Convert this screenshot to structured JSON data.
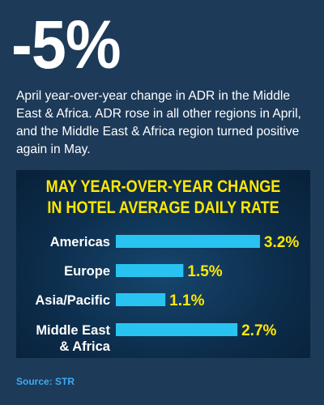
{
  "headline": {
    "figure": "-5%",
    "description": "April year-over-year change in ADR in the Middle East & Africa. ADR rose in all other regions in April, and the Middle East & Africa region turned positive again in May."
  },
  "colors": {
    "background": "#1d3a58",
    "bar": "#29c3f2",
    "value_label": "#ffe800",
    "title": "#ffe800",
    "category_label": "#ffffff",
    "source": "#3fa9f5"
  },
  "chart_data": {
    "type": "bar",
    "orientation": "horizontal",
    "title_lines": [
      "MAY YEAR-OVER-YEAR CHANGE",
      "IN HOTEL AVERAGE DAILY RATE"
    ],
    "categories": [
      [
        "Americas"
      ],
      [
        "Europe"
      ],
      [
        "Asia/Pacific"
      ],
      [
        "Middle East",
        "& Africa"
      ]
    ],
    "values": [
      3.2,
      1.5,
      1.1,
      2.7
    ],
    "value_labels": [
      "3.2%",
      "1.5%",
      "1.1%",
      "2.7%"
    ],
    "grid": false,
    "axes_shown": false
  },
  "source": "Source: STR"
}
